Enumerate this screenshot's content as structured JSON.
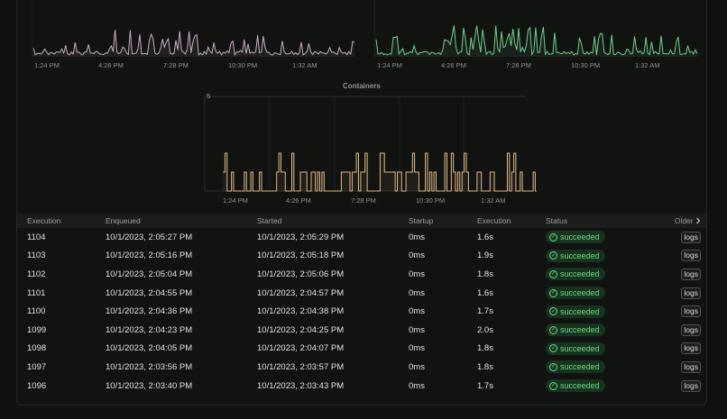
{
  "charts": {
    "left": {
      "color": "#c9a9c8",
      "secondary_color": "#9fb4d6",
      "x_ticks": [
        "1:24 PM",
        "4:26 PM",
        "7:28 PM",
        "10:30 PM",
        "1:32 AM"
      ]
    },
    "right": {
      "color": "#6fcf8a",
      "x_ticks": [
        "1:24 PM",
        "4:26 PM",
        "7:28 PM",
        "10:30 PM",
        "1:32 AM"
      ]
    },
    "containers": {
      "title": "Containers",
      "color": "#e0b783",
      "y_max_label": "5",
      "x_ticks": [
        "1:24 PM",
        "4:26 PM",
        "7:28 PM",
        "10:30 PM",
        "1:32 AM"
      ]
    }
  },
  "table": {
    "headers": {
      "execution": "Execution",
      "enqueued": "Enqueued",
      "started": "Started",
      "startup": "Startup",
      "duration": "Execution",
      "status": "Status",
      "older": "Older"
    },
    "logs_label": "logs",
    "rows": [
      {
        "id": "1104",
        "enqueued": "10/1/2023, 2:05:27 PM",
        "started": "10/1/2023, 2:05:29 PM",
        "startup": "0ms",
        "duration": "1.6s",
        "status": "succeeded"
      },
      {
        "id": "1103",
        "enqueued": "10/1/2023, 2:05:16 PM",
        "started": "10/1/2023, 2:05:18 PM",
        "startup": "0ms",
        "duration": "1.9s",
        "status": "succeeded"
      },
      {
        "id": "1102",
        "enqueued": "10/1/2023, 2:05:04 PM",
        "started": "10/1/2023, 2:05:06 PM",
        "startup": "0ms",
        "duration": "1.8s",
        "status": "succeeded"
      },
      {
        "id": "1101",
        "enqueued": "10/1/2023, 2:04:55 PM",
        "started": "10/1/2023, 2:04:57 PM",
        "startup": "0ms",
        "duration": "1.6s",
        "status": "succeeded"
      },
      {
        "id": "1100",
        "enqueued": "10/1/2023, 2:04:36 PM",
        "started": "10/1/2023, 2:04:38 PM",
        "startup": "0ms",
        "duration": "1.7s",
        "status": "succeeded"
      },
      {
        "id": "1099",
        "enqueued": "10/1/2023, 2:04:23 PM",
        "started": "10/1/2023, 2:04:25 PM",
        "startup": "0ms",
        "duration": "2.0s",
        "status": "succeeded"
      },
      {
        "id": "1098",
        "enqueued": "10/1/2023, 2:04:05 PM",
        "started": "10/1/2023, 2:04:07 PM",
        "startup": "0ms",
        "duration": "1.8s",
        "status": "succeeded"
      },
      {
        "id": "1097",
        "enqueued": "10/1/2023, 2:03:56 PM",
        "started": "10/1/2023, 2:03:57 PM",
        "startup": "0ms",
        "duration": "1.8s",
        "status": "succeeded"
      },
      {
        "id": "1096",
        "enqueued": "10/1/2023, 2:03:40 PM",
        "started": "10/1/2023, 2:03:43 PM",
        "startup": "0ms",
        "duration": "1.7s",
        "status": "succeeded"
      }
    ]
  }
}
